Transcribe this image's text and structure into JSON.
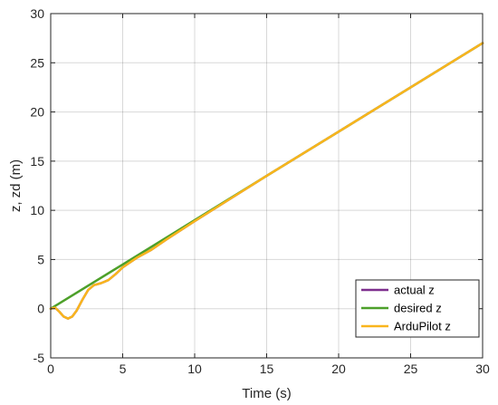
{
  "chart_data": {
    "type": "line",
    "xlabel": "Time (s)",
    "ylabel": "z, zd (m)",
    "xlim": [
      0,
      30
    ],
    "ylim": [
      -5,
      30
    ],
    "xticks": [
      0,
      5,
      10,
      15,
      20,
      25,
      30
    ],
    "yticks": [
      -5,
      0,
      5,
      10,
      15,
      20,
      25,
      30
    ],
    "grid": true,
    "legend_position": "bottom-right",
    "series": [
      {
        "name": "actual z",
        "color": "#7E2F8E",
        "x": [
          0,
          0.3,
          0.6,
          0.9,
          1.2,
          1.5,
          1.8,
          2.2,
          2.6,
          3.0,
          3.5,
          4.0,
          4.5,
          5.0,
          5.5,
          6.0,
          7.0,
          8.0,
          10,
          15,
          20,
          25,
          30
        ],
        "y": [
          0,
          0.1,
          -0.3,
          -0.8,
          -1.0,
          -0.8,
          -0.2,
          0.9,
          1.9,
          2.4,
          2.6,
          2.9,
          3.5,
          4.2,
          4.7,
          5.2,
          6.0,
          7.0,
          8.9,
          13.5,
          18.0,
          22.5,
          27.0
        ]
      },
      {
        "name": "desired z",
        "color": "#4DA02A",
        "x": [
          0,
          5,
          10,
          15,
          20,
          25,
          30
        ],
        "y": [
          0,
          4.5,
          9.0,
          13.5,
          18.0,
          22.5,
          27.0
        ]
      },
      {
        "name": "ArduPilot z",
        "color": "#F9B51C",
        "x": [
          0,
          0.3,
          0.6,
          0.9,
          1.2,
          1.5,
          1.8,
          2.2,
          2.6,
          3.0,
          3.5,
          4.0,
          4.5,
          5.0,
          5.5,
          6.0,
          7.0,
          8.0,
          10,
          15,
          20,
          25,
          30
        ],
        "y": [
          0,
          0.1,
          -0.3,
          -0.8,
          -1.0,
          -0.8,
          -0.2,
          0.9,
          1.9,
          2.4,
          2.6,
          2.9,
          3.5,
          4.2,
          4.7,
          5.2,
          6.0,
          7.0,
          8.9,
          13.5,
          18.0,
          22.5,
          27.0
        ]
      }
    ]
  }
}
